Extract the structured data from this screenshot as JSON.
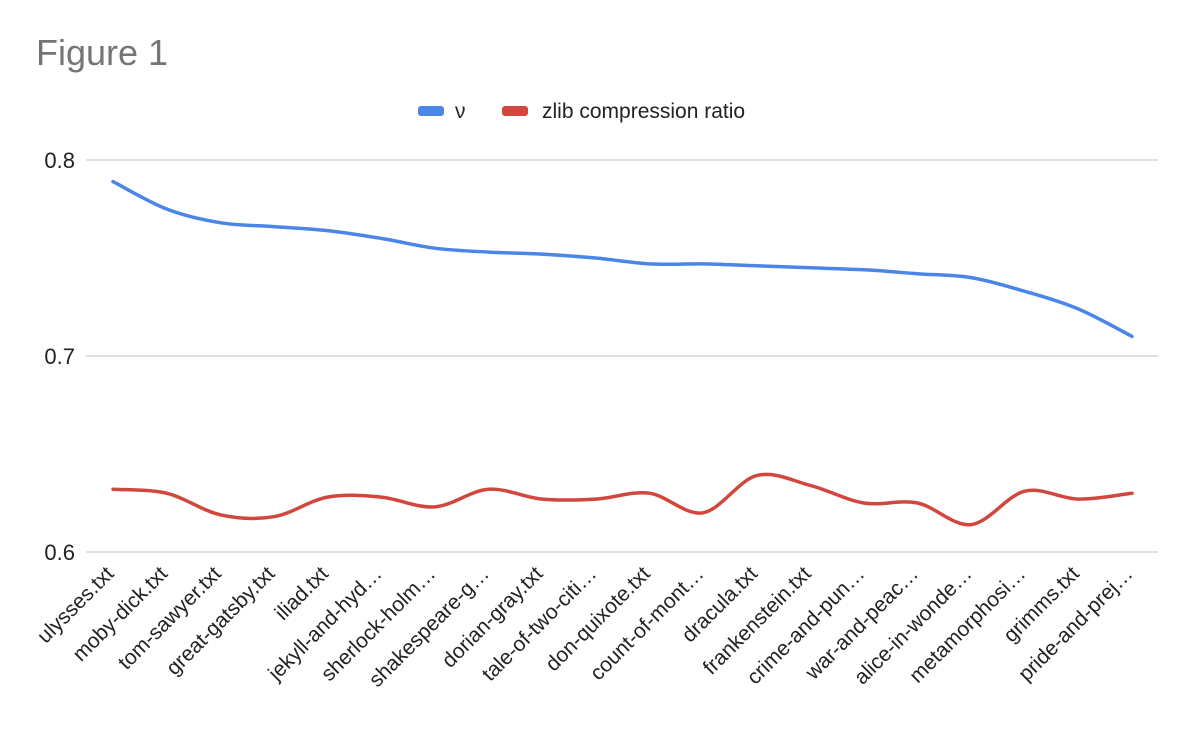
{
  "figure": {
    "title": "Figure 1"
  },
  "chart_data": {
    "type": "line",
    "title": "",
    "xlabel": "",
    "ylabel": "",
    "ylim": [
      0.6,
      0.8
    ],
    "yticks": [
      0.6,
      0.7,
      0.8
    ],
    "grid": true,
    "legend_position": "top",
    "categories": [
      "ulysses.txt",
      "moby-dick.txt",
      "tom-sawyer.txt",
      "great-gatsby.txt",
      "iliad.txt",
      "jekyll-and-hyd…",
      "sherlock-holm…",
      "shakespeare-g…",
      "dorian-gray.txt",
      "tale-of-two-citi…",
      "don-quixote.txt",
      "count-of-mont…",
      "dracula.txt",
      "frankenstein.txt",
      "crime-and-pun…",
      "war-and-peac…",
      "alice-in-wonde…",
      "metamorphosi…",
      "grimms.txt",
      "pride-and-prej…"
    ],
    "series": [
      {
        "name": "ν",
        "color": "#4a86e8",
        "values": [
          0.789,
          0.775,
          0.768,
          0.766,
          0.764,
          0.76,
          0.755,
          0.753,
          0.752,
          0.75,
          0.747,
          0.747,
          0.746,
          0.745,
          0.744,
          0.742,
          0.74,
          0.733,
          0.724,
          0.71
        ]
      },
      {
        "name": "zlib compression ratio",
        "color": "#d2473d",
        "values": [
          0.632,
          0.63,
          0.619,
          0.618,
          0.628,
          0.628,
          0.623,
          0.632,
          0.627,
          0.627,
          0.63,
          0.62,
          0.639,
          0.634,
          0.625,
          0.625,
          0.614,
          0.631,
          0.627,
          0.63
        ]
      }
    ]
  }
}
